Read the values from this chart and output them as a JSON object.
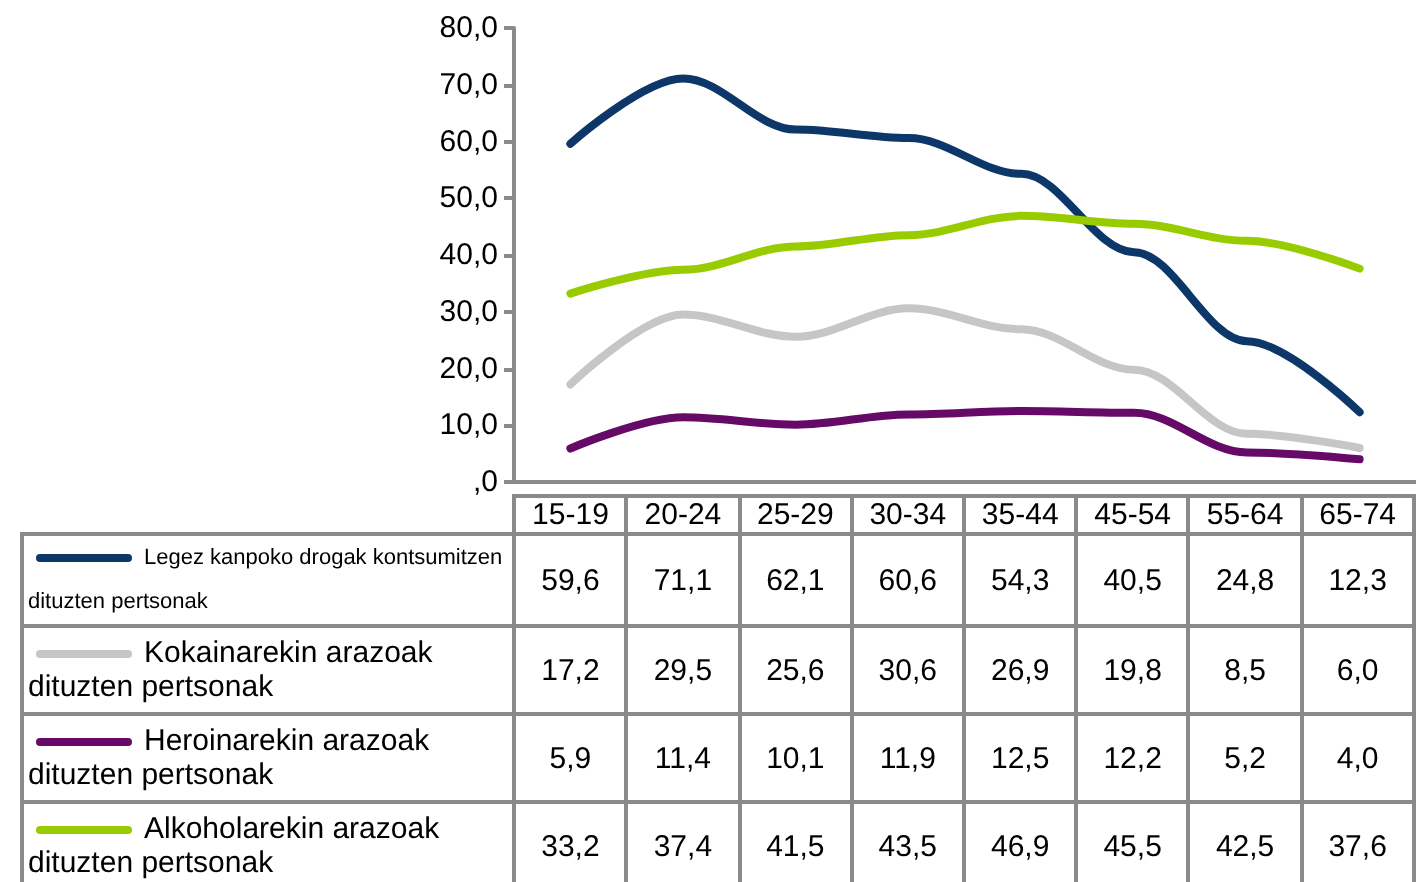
{
  "chart_data": {
    "type": "line",
    "categories": [
      "15-19",
      "20-24",
      "25-29",
      "30-34",
      "35-44",
      "45-54",
      "55-64",
      "65-74"
    ],
    "series": [
      {
        "name": "Legez kanpoko drogak kontsumitzen dituzten pertsonak",
        "color": "#0d3768",
        "values": [
          59.6,
          71.1,
          62.1,
          60.6,
          54.3,
          40.5,
          24.8,
          12.3
        ],
        "value_labels": [
          "59,6",
          "71,1",
          "62,1",
          "60,6",
          "54,3",
          "40,5",
          "24,8",
          "12,3"
        ]
      },
      {
        "name": "Kokainarekin arazoak dituzten pertsonak",
        "color": "#c6c6c6",
        "values": [
          17.2,
          29.5,
          25.6,
          30.6,
          26.9,
          19.8,
          8.5,
          6.0
        ],
        "value_labels": [
          "17,2",
          "29,5",
          "25,6",
          "30,6",
          "26,9",
          "19,8",
          "8,5",
          "6,0"
        ]
      },
      {
        "name": "Heroinarekin arazoak dituzten pertsonak",
        "color": "#650a66",
        "values": [
          5.9,
          11.4,
          10.1,
          11.9,
          12.5,
          12.2,
          5.2,
          4.0
        ],
        "value_labels": [
          "5,9",
          "11,4",
          "10,1",
          "11,9",
          "12,5",
          "12,2",
          "5,2",
          "4,0"
        ]
      },
      {
        "name": "Alkoholarekin arazoak dituzten pertsonak",
        "color": "#99cc00",
        "values": [
          33.2,
          37.4,
          41.5,
          43.5,
          46.9,
          45.5,
          42.5,
          37.6
        ],
        "value_labels": [
          "33,2",
          "37,4",
          "41,5",
          "43,5",
          "46,9",
          "45,5",
          "42,5",
          "37,6"
        ]
      }
    ],
    "ylim": [
      0,
      80
    ],
    "yticks": [
      {
        "value": 0,
        "label": ",0"
      },
      {
        "value": 10,
        "label": "10,0"
      },
      {
        "value": 20,
        "label": "20,0"
      },
      {
        "value": 30,
        "label": "30,0"
      },
      {
        "value": 40,
        "label": "40,0"
      },
      {
        "value": 50,
        "label": "50,0"
      },
      {
        "value": 60,
        "label": "60,0"
      },
      {
        "value": 70,
        "label": "70,0"
      },
      {
        "value": 80,
        "label": "80,0"
      }
    ],
    "grid": false,
    "legend": "bottom",
    "marker": "none",
    "line_style": "solid"
  }
}
